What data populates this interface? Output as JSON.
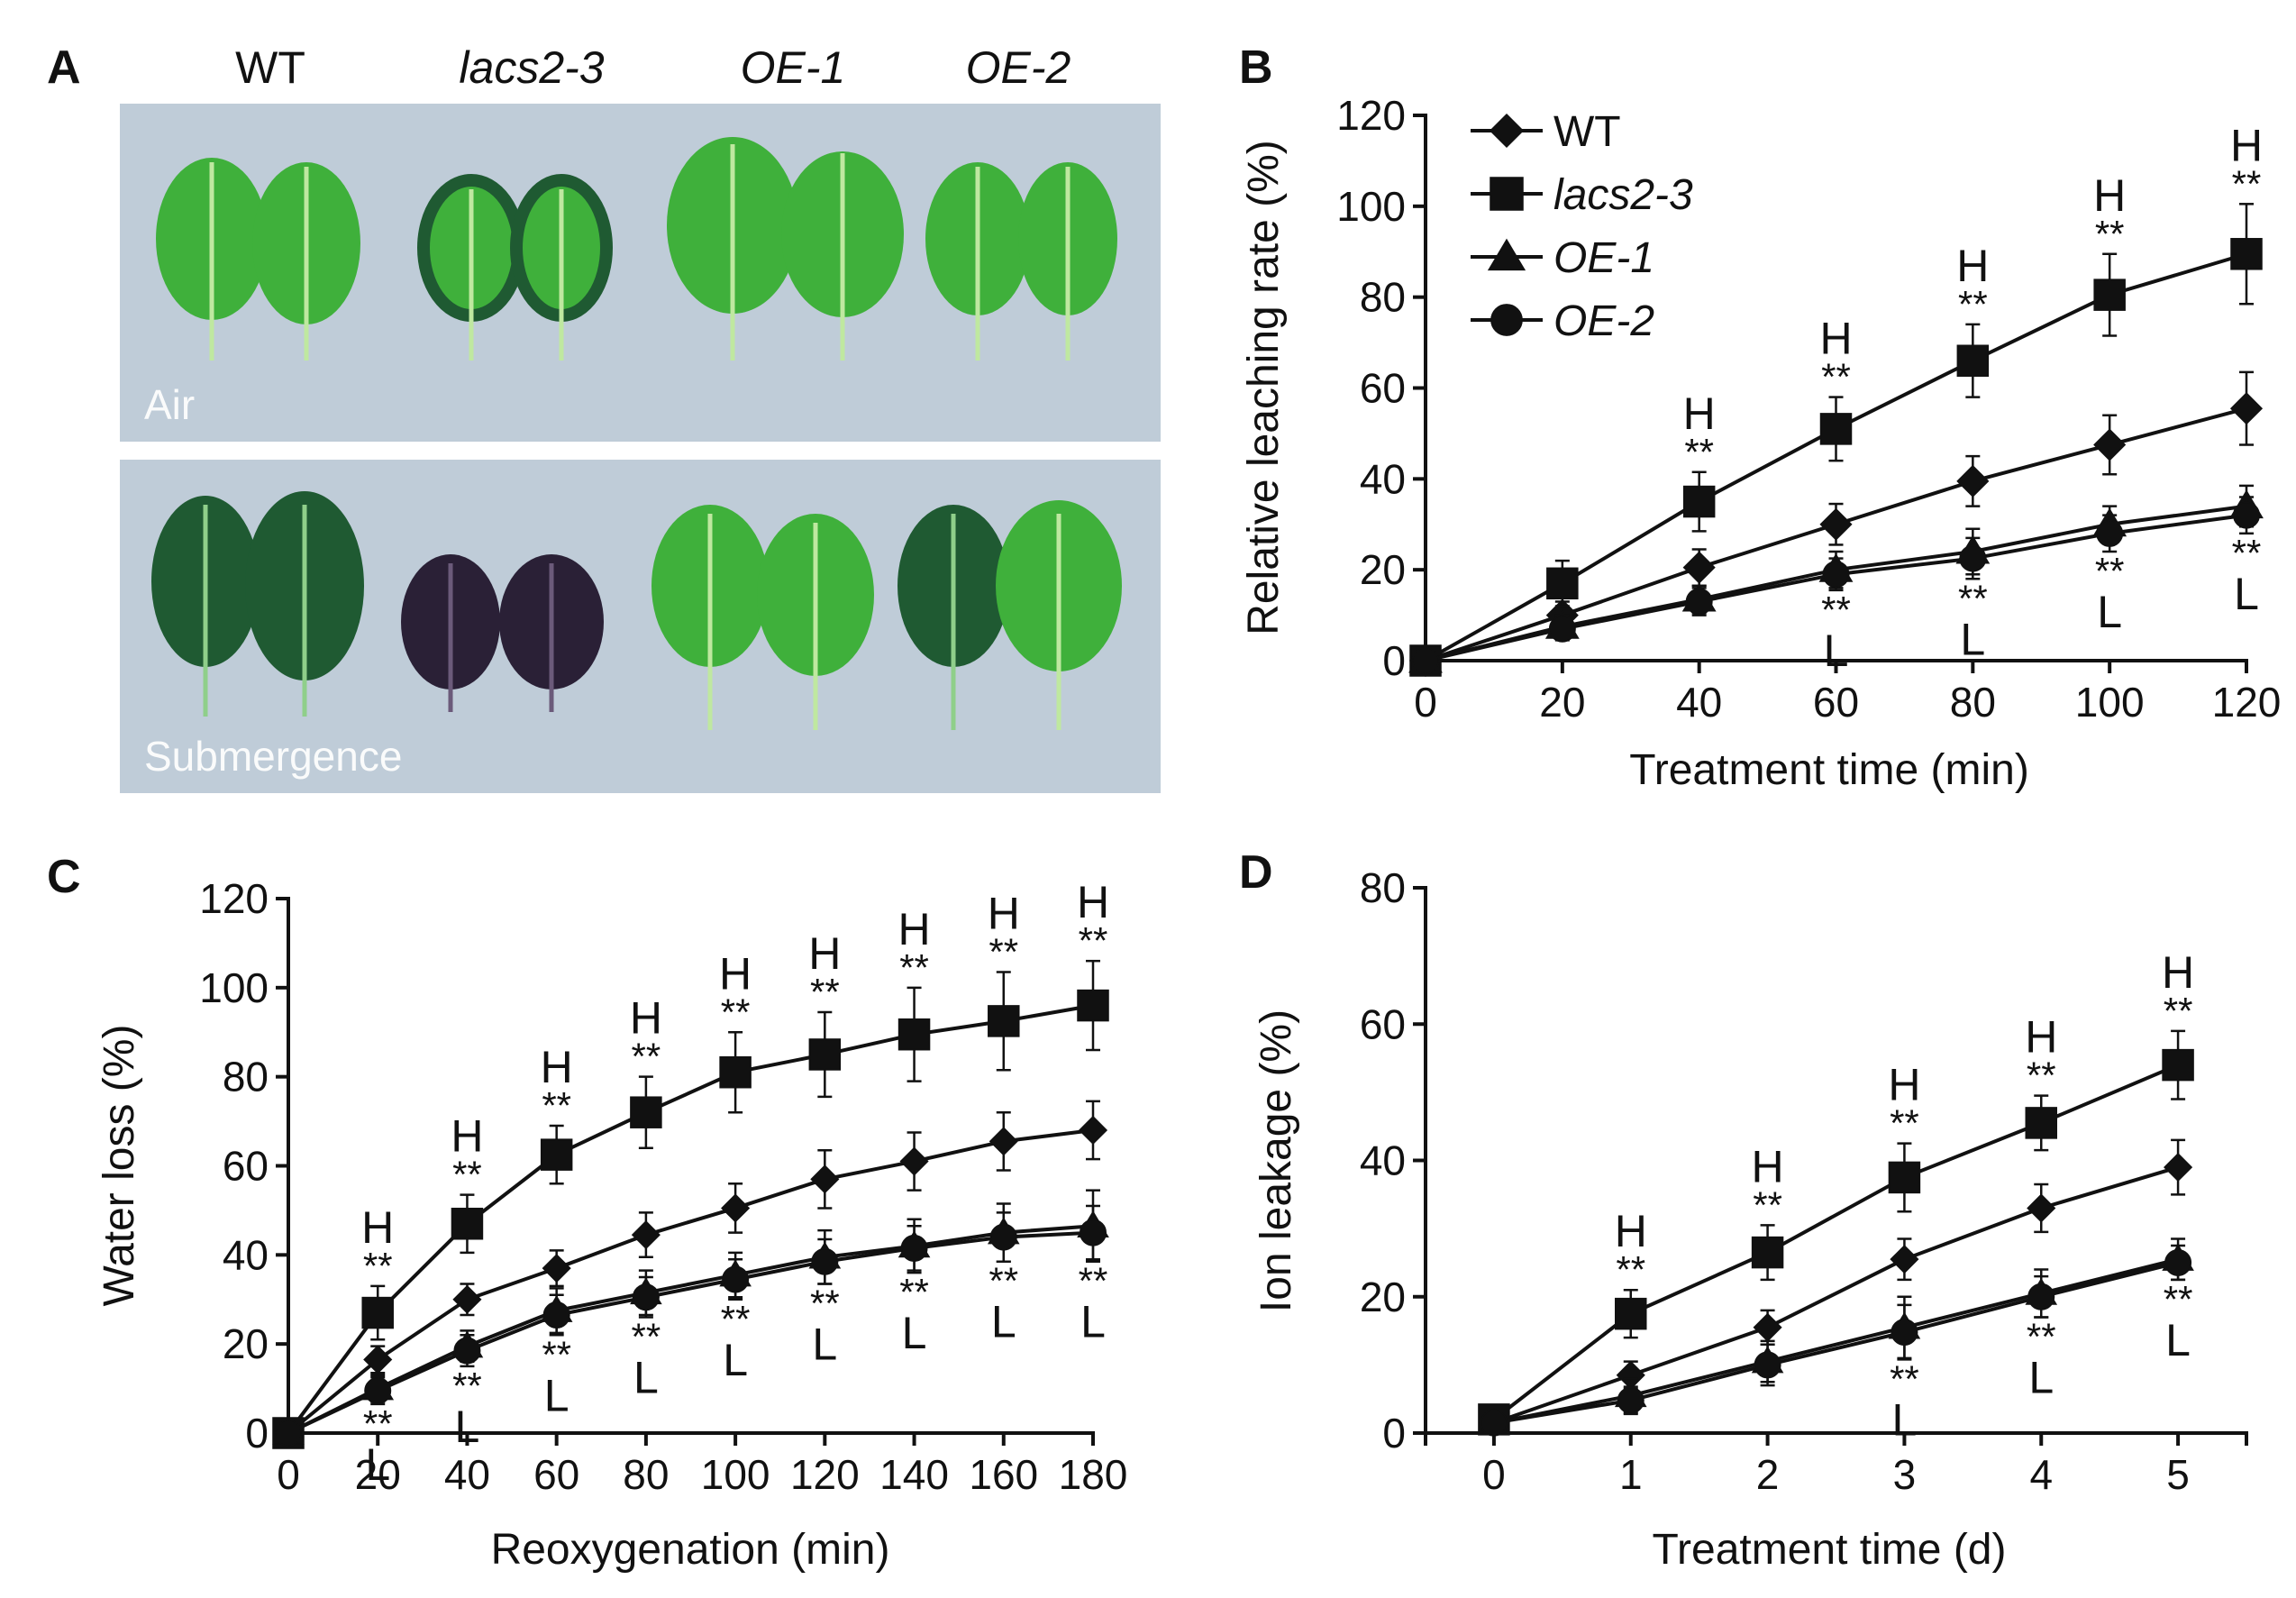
{
  "photo_panel": {
    "label": "A",
    "genotypes": [
      "WT",
      "lacs2-3",
      "OE-1",
      "OE-2"
    ],
    "air_label": "Air",
    "submergence_label": "Submergence",
    "colors": {
      "plate_background": "#bfccd8",
      "green_leaf": "#3fb03b",
      "dark_leaf": "#2a2036",
      "dark_green": "#1f5a32"
    }
  },
  "legend": {
    "entries": [
      {
        "name": "WT",
        "marker": "diamond",
        "italic": false
      },
      {
        "name": "lacs2-3",
        "marker": "square",
        "italic": true
      },
      {
        "name": "OE-1",
        "marker": "triangle",
        "italic": true
      },
      {
        "name": "OE-2",
        "marker": "circle",
        "italic": true
      }
    ]
  },
  "chart_data": [
    {
      "panel": "B",
      "type": "line",
      "xlabel": "Treatment time (min)",
      "ylabel": "Relative leaching rate (%)",
      "xlim": [
        0,
        120
      ],
      "ylim": [
        0,
        120
      ],
      "xticks": [
        0,
        20,
        40,
        60,
        80,
        100,
        120
      ],
      "yticks": [
        0,
        20,
        40,
        60,
        80,
        100,
        120
      ],
      "x": [
        0,
        20,
        40,
        60,
        80,
        100,
        120
      ],
      "series": [
        {
          "name": "WT",
          "marker": "diamond",
          "values": [
            0,
            10,
            20.5,
            30,
            39.5,
            47.5,
            55.5
          ],
          "errors": [
            0,
            3,
            4,
            4.5,
            5.5,
            6.5,
            8
          ]
        },
        {
          "name": "lacs2-3",
          "marker": "square",
          "values": [
            0,
            17,
            35,
            51,
            66,
            80.5,
            89.5
          ],
          "errors": [
            0,
            5,
            6.5,
            7,
            8,
            9,
            11
          ]
        },
        {
          "name": "OE-1",
          "marker": "triangle",
          "values": [
            0,
            7.5,
            13.5,
            20,
            24,
            30,
            34
          ],
          "errors": [
            0,
            2.5,
            3,
            4,
            5,
            4,
            4.5
          ]
        },
        {
          "name": "OE-2",
          "marker": "circle",
          "values": [
            0,
            7,
            13,
            19,
            22.5,
            28,
            32
          ],
          "errors": [
            0,
            2.5,
            3,
            3.5,
            4.5,
            4,
            4
          ]
        }
      ],
      "annotations_high": [
        {
          "x": 40,
          "stars": "**",
          "letter": "H"
        },
        {
          "x": 60,
          "stars": "**",
          "letter": "H"
        },
        {
          "x": 80,
          "stars": "**",
          "letter": "H"
        },
        {
          "x": 100,
          "stars": "**",
          "letter": "H"
        },
        {
          "x": 120,
          "stars": "**",
          "letter": "H"
        }
      ],
      "annotations_low": [
        {
          "x": 60,
          "stars": "**",
          "letter": "L"
        },
        {
          "x": 80,
          "stars": "**",
          "letter": "L"
        },
        {
          "x": 100,
          "stars": "**",
          "letter": "L"
        },
        {
          "x": 120,
          "stars": "**",
          "letter": "L"
        }
      ]
    },
    {
      "panel": "C",
      "type": "line",
      "xlabel": "Reoxygenation (min)",
      "ylabel": "Water loss (%)",
      "xlim": [
        0,
        180
      ],
      "ylim": [
        0,
        120
      ],
      "xticks": [
        0,
        20,
        40,
        60,
        80,
        100,
        120,
        140,
        160,
        180
      ],
      "yticks": [
        0,
        20,
        40,
        60,
        80,
        100,
        120
      ],
      "x": [
        0,
        20,
        40,
        60,
        80,
        100,
        120,
        140,
        160,
        180
      ],
      "series": [
        {
          "name": "WT",
          "marker": "diamond",
          "values": [
            0,
            16.5,
            30,
            37,
            44.5,
            50.5,
            57,
            61,
            65.5,
            68
          ],
          "errors": [
            0,
            3,
            3.5,
            4,
            5,
            5.5,
            6.5,
            6.5,
            6.5,
            6.5
          ]
        },
        {
          "name": "lacs2-3",
          "marker": "square",
          "values": [
            0,
            27,
            47,
            62.5,
            72,
            81,
            85,
            89.5,
            92.5,
            96
          ],
          "errors": [
            0,
            6,
            6.5,
            6.5,
            8,
            9,
            9.5,
            10.5,
            11,
            10
          ]
        },
        {
          "name": "OE-1",
          "marker": "triangle",
          "values": [
            0,
            10,
            19.5,
            27.5,
            31.5,
            35.5,
            39.5,
            42,
            45,
            46.5
          ],
          "errors": [
            0,
            3,
            3.5,
            5,
            5,
            5,
            6,
            6,
            6.5,
            8
          ]
        },
        {
          "name": "OE-2",
          "marker": "circle",
          "values": [
            0,
            9.5,
            18.5,
            26.5,
            30.5,
            34.5,
            38.5,
            41.5,
            44,
            45
          ],
          "errors": [
            0,
            3,
            3.5,
            4.5,
            4.5,
            4.5,
            5,
            5,
            5.5,
            6
          ]
        }
      ],
      "annotations_high": [
        {
          "x": 20,
          "stars": "**",
          "letter": "H"
        },
        {
          "x": 40,
          "stars": "**",
          "letter": "H"
        },
        {
          "x": 60,
          "stars": "**",
          "letter": "H"
        },
        {
          "x": 80,
          "stars": "**",
          "letter": "H"
        },
        {
          "x": 100,
          "stars": "**",
          "letter": "H"
        },
        {
          "x": 120,
          "stars": "**",
          "letter": "H"
        },
        {
          "x": 140,
          "stars": "**",
          "letter": "H"
        },
        {
          "x": 160,
          "stars": "**",
          "letter": "H"
        },
        {
          "x": 180,
          "stars": "**",
          "letter": "H"
        }
      ],
      "annotations_low": [
        {
          "x": 20,
          "stars": "**",
          "letter": "L"
        },
        {
          "x": 40,
          "stars": "**",
          "letter": "L"
        },
        {
          "x": 60,
          "stars": "**",
          "letter": "L"
        },
        {
          "x": 80,
          "stars": "**",
          "letter": "L"
        },
        {
          "x": 100,
          "stars": "**",
          "letter": "L"
        },
        {
          "x": 120,
          "stars": "**",
          "letter": "L"
        },
        {
          "x": 140,
          "stars": "**",
          "letter": "L"
        },
        {
          "x": 160,
          "stars": "**",
          "letter": "L"
        },
        {
          "x": 180,
          "stars": "**",
          "letter": "L"
        }
      ]
    },
    {
      "panel": "D",
      "type": "line",
      "xlabel": "Treatment time (d)",
      "ylabel": "Ion leakage (%)",
      "xlim": [
        -0.5,
        5.5
      ],
      "ylim": [
        0,
        80
      ],
      "xticks": [
        0,
        1,
        2,
        3,
        4,
        5
      ],
      "yticks": [
        0,
        20,
        40,
        60,
        80
      ],
      "x": [
        0,
        1,
        2,
        3,
        4,
        5
      ],
      "series": [
        {
          "name": "WT",
          "marker": "diamond",
          "values": [
            1.5,
            8.5,
            15.5,
            25.5,
            33,
            39
          ],
          "errors": [
            0.5,
            2,
            2.5,
            3,
            3.5,
            4
          ]
        },
        {
          "name": "lacs2-3",
          "marker": "square",
          "values": [
            2,
            17.5,
            26.5,
            37.5,
            45.5,
            54
          ],
          "errors": [
            0.8,
            3.5,
            4,
            5,
            4,
            5
          ]
        },
        {
          "name": "OE-1",
          "marker": "triangle",
          "values": [
            1.5,
            5.5,
            10.5,
            15.5,
            20.5,
            25.5
          ],
          "errors": [
            0.5,
            2.5,
            3,
            4.5,
            3.5,
            3
          ]
        },
        {
          "name": "OE-2",
          "marker": "circle",
          "values": [
            1.5,
            4.8,
            10,
            14.8,
            20,
            25
          ],
          "errors": [
            0.5,
            2,
            3,
            4,
            3,
            2.5
          ]
        }
      ],
      "annotations_high": [
        {
          "x": 1,
          "stars": "**",
          "letter": "H"
        },
        {
          "x": 2,
          "stars": "**",
          "letter": "H"
        },
        {
          "x": 3,
          "stars": "**",
          "letter": "H"
        },
        {
          "x": 4,
          "stars": "**",
          "letter": "H"
        },
        {
          "x": 5,
          "stars": "**",
          "letter": "H"
        }
      ],
      "annotations_low": [
        {
          "x": 3,
          "stars": "**",
          "letter": "L"
        },
        {
          "x": 4,
          "stars": "**",
          "letter": "L"
        },
        {
          "x": 5,
          "stars": "**",
          "letter": "L"
        }
      ]
    }
  ]
}
